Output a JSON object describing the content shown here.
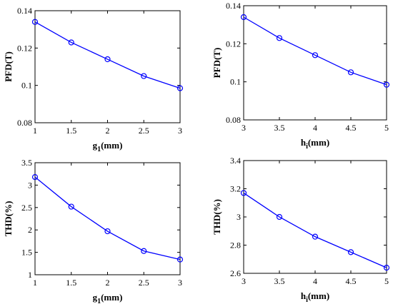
{
  "chart_data": [
    {
      "type": "line",
      "xlabel": "g",
      "xlabel_sub": "1",
      "xlabel_unit": "(mm)",
      "ylabel": "PFD(T)",
      "x": [
        1,
        1.5,
        2,
        2.5,
        3
      ],
      "xlim": [
        1,
        3
      ],
      "ylim": [
        0.08,
        0.14
      ],
      "xticks": [
        "1",
        "1.5",
        "2",
        "2.5",
        "3"
      ],
      "yticks": [
        "0.08",
        "0.1",
        "0.12",
        "0.14"
      ],
      "series": [
        {
          "values": [
            0.134,
            0.123,
            0.114,
            0.105,
            0.0985
          ],
          "marker": "circle"
        }
      ]
    },
    {
      "type": "line",
      "xlabel": "h",
      "xlabel_sub": "i",
      "xlabel_unit": "(mm)",
      "ylabel": "PFD(T)",
      "x": [
        3,
        3.5,
        4,
        4.5,
        5
      ],
      "xlim": [
        3,
        5
      ],
      "ylim": [
        0.08,
        0.14
      ],
      "xticks": [
        "3",
        "3.5",
        "4",
        "4.5",
        "5"
      ],
      "yticks": [
        "0.08",
        "0.1",
        "0.12",
        "0.14"
      ],
      "series": [
        {
          "values": [
            0.134,
            0.123,
            0.114,
            0.105,
            0.0985
          ],
          "marker": "circle"
        }
      ]
    },
    {
      "type": "line",
      "xlabel": "g",
      "xlabel_sub": "1",
      "xlabel_unit": "(mm)",
      "ylabel": "THD(%)",
      "x": [
        1,
        1.5,
        2,
        2.5,
        3
      ],
      "xlim": [
        1,
        3
      ],
      "ylim": [
        1,
        3.5
      ],
      "xticks": [
        "1",
        "1.5",
        "2",
        "2.5",
        "3"
      ],
      "yticks": [
        "1",
        "1.5",
        "2",
        "2.5",
        "3",
        "3.5"
      ],
      "series": [
        {
          "values": [
            3.18,
            2.52,
            1.97,
            1.53,
            1.34
          ],
          "marker": "circle"
        }
      ]
    },
    {
      "type": "line",
      "xlabel": "h",
      "xlabel_sub": "i",
      "xlabel_unit": "(mm)",
      "ylabel": "THD(%)",
      "x": [
        3,
        3.5,
        4,
        4.5,
        5
      ],
      "xlim": [
        3,
        5
      ],
      "ylim": [
        2.6,
        3.4
      ],
      "xticks": [
        "3",
        "3.5",
        "4",
        "4.5",
        "5"
      ],
      "yticks": [
        "2.6",
        "2.8",
        "3",
        "3.2",
        "3.4"
      ],
      "series": [
        {
          "values": [
            3.17,
            3.0,
            2.86,
            2.75,
            2.64
          ],
          "marker": "circle"
        }
      ]
    }
  ],
  "colors": {
    "series": "#0000ff",
    "axes": "#000000",
    "background": "#ffffff"
  }
}
